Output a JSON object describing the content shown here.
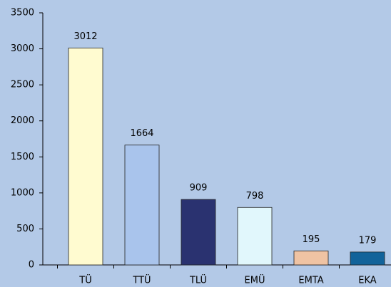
{
  "chart_data": {
    "type": "bar",
    "categories": [
      "TÜ",
      "TTÜ",
      "TLÜ",
      "EMÜ",
      "EMTA",
      "EKA"
    ],
    "values": [
      3012,
      1664,
      909,
      798,
      195,
      179
    ],
    "colors": [
      "#fffbd0",
      "#a9c4ec",
      "#2a3270",
      "#e1f7fc",
      "#efc3a3",
      "#12639a"
    ],
    "ylim": [
      0,
      3500
    ],
    "yticks": [
      0,
      500,
      1000,
      1500,
      2000,
      2500,
      3000,
      3500
    ],
    "grid": false
  }
}
